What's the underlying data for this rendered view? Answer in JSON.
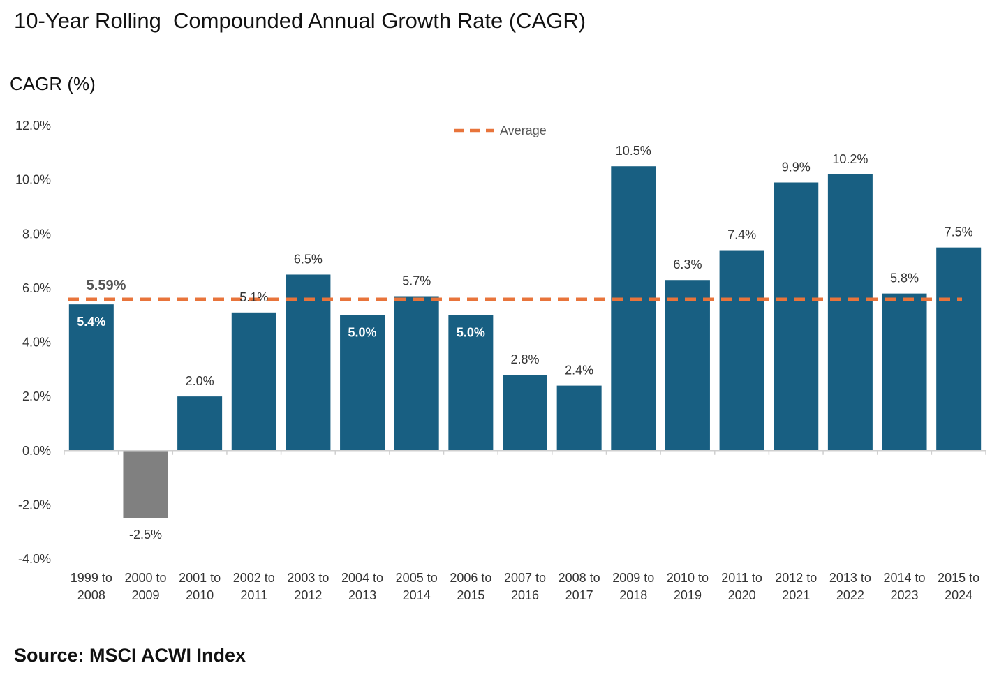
{
  "title": "10-Year Rolling  Compounded Annual Growth Rate (CAGR)",
  "source": "Source: MSCI ACWI Index",
  "colors": {
    "positive_bar": "#185f82",
    "negative_bar": "#808080",
    "average_line": "#e8743b",
    "title_rule": "#7a3a8c"
  },
  "chart_data": {
    "type": "bar",
    "ylabel": "CAGR (%)",
    "xlabel": "",
    "ylim": [
      -4.0,
      12.0
    ],
    "yticks": [
      {
        "value": 12,
        "label": "12.0%"
      },
      {
        "value": 10,
        "label": "10.0%"
      },
      {
        "value": 8,
        "label": "8.0%"
      },
      {
        "value": 6,
        "label": "6.0%"
      },
      {
        "value": 4,
        "label": "4.0%"
      },
      {
        "value": 2,
        "label": "2.0%"
      },
      {
        "value": 0,
        "label": "0.0%"
      },
      {
        "value": -2,
        "label": "-2.0%"
      },
      {
        "value": -4,
        "label": "-4.0%"
      }
    ],
    "categories": [
      [
        "1999 to",
        "2008"
      ],
      [
        "2000 to",
        "2009"
      ],
      [
        "2001 to",
        "2010"
      ],
      [
        "2002 to",
        "2011"
      ],
      [
        "2003 to",
        "2012"
      ],
      [
        "2004 to",
        "2013"
      ],
      [
        "2005 to",
        "2014"
      ],
      [
        "2006 to",
        "2015"
      ],
      [
        "2007 to",
        "2016"
      ],
      [
        "2008 to",
        "2017"
      ],
      [
        "2009 to",
        "2018"
      ],
      [
        "2010 to",
        "2019"
      ],
      [
        "2011 to",
        "2020"
      ],
      [
        "2012 to",
        "2021"
      ],
      [
        "2013 to",
        "2022"
      ],
      [
        "2014 to",
        "2023"
      ],
      [
        "2015 to",
        "2024"
      ]
    ],
    "values": [
      5.4,
      -2.5,
      2.0,
      5.1,
      6.5,
      5.0,
      5.7,
      5.0,
      2.8,
      2.4,
      10.5,
      6.3,
      7.4,
      9.9,
      10.2,
      5.8,
      7.5
    ],
    "data_labels": [
      "5.4%",
      "-2.5%",
      "2.0%",
      "5.1%",
      "6.5%",
      "5.0%",
      "5.7%",
      "5.0%",
      "2.8%",
      "2.4%",
      "10.5%",
      "6.3%",
      "7.4%",
      "9.9%",
      "10.2%",
      "5.8%",
      "7.5%"
    ],
    "label_inside": [
      true,
      false,
      false,
      false,
      false,
      true,
      false,
      true,
      false,
      false,
      false,
      false,
      false,
      false,
      false,
      false,
      false
    ],
    "average": {
      "name": "Average",
      "value": 5.59,
      "label": "5.59%",
      "style": "dashed"
    },
    "legend": {
      "position": "top-center",
      "entries": [
        "Average"
      ]
    },
    "grid": false
  }
}
